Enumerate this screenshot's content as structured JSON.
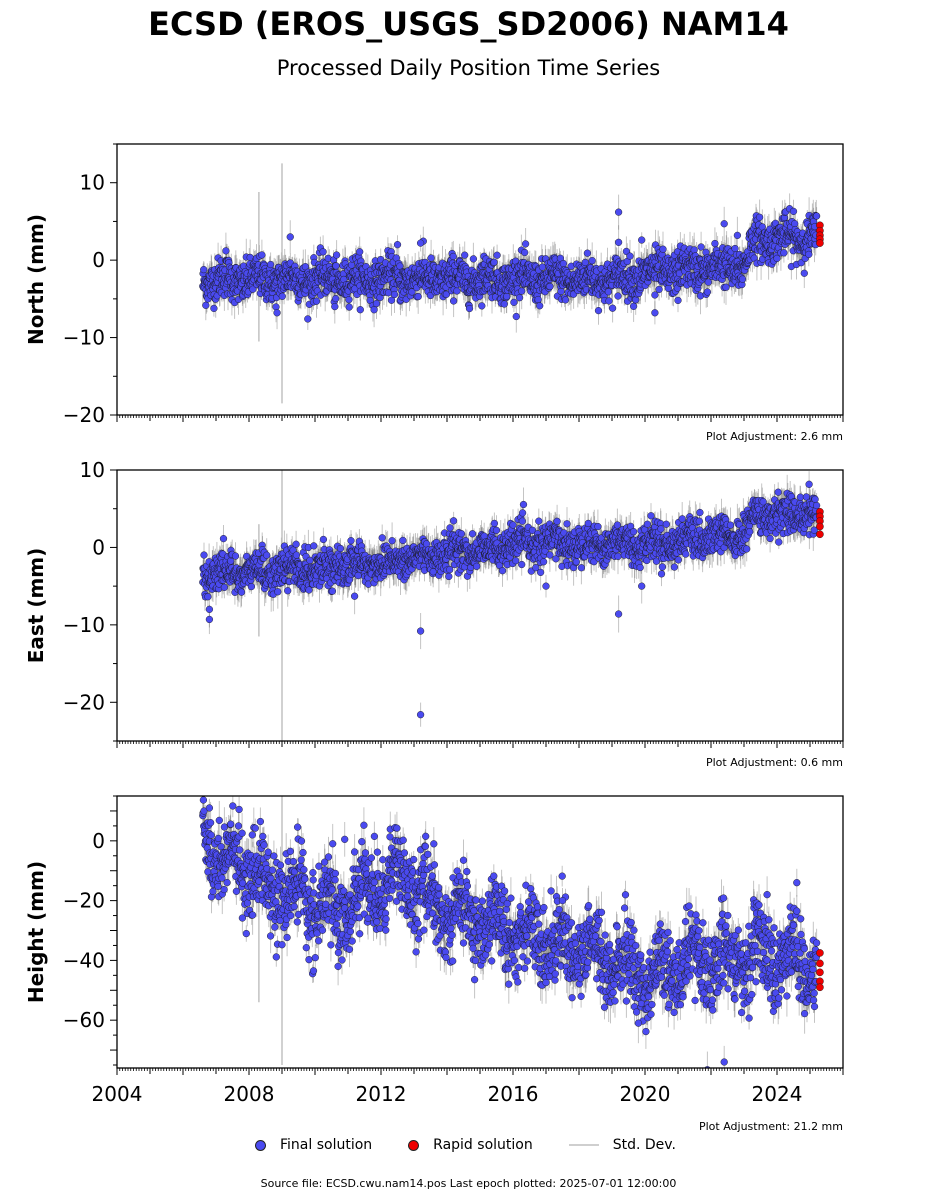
{
  "header": {
    "title": "ECSD (EROS_USGS_SD2006) NAM14",
    "subtitle": "Processed Daily Position Time Series"
  },
  "legend": {
    "final_label": "Final solution",
    "rapid_label": "Rapid solution",
    "std_label": "Std. Dev."
  },
  "footer": {
    "source": "Source file: ECSD.cwu.nam14.pos  Last epoch plotted: 2025-07-01 12:00:00"
  },
  "colors": {
    "final": "#4a4af0",
    "rapid": "#ee0000",
    "stddev": "#b8b8b8",
    "marker_edge": "#1a1a1a"
  },
  "chart_data": [
    {
      "type": "scatter",
      "ylabel": "North (mm)",
      "ylim": [
        -20,
        15
      ],
      "yticks": [
        10,
        0,
        -10,
        -20
      ],
      "xlim": [
        2004,
        2026
      ],
      "adjustment": "Plot Adjustment: 2.6 mm",
      "final_trend": [
        [
          2006.6,
          -2.6
        ],
        [
          2012.0,
          -2.4
        ],
        [
          2016.0,
          -2.4
        ],
        [
          2019.0,
          -2.5
        ],
        [
          2020.5,
          -1.5
        ],
        [
          2023.0,
          -0.8
        ],
        [
          2023.3,
          2.6
        ],
        [
          2025.2,
          3.0
        ]
      ],
      "scatter_sd": 1.3,
      "outliers": [
        [
          2007.3,
          1.2
        ],
        [
          2008.85,
          -6.8
        ],
        [
          2009.25,
          3.0
        ],
        [
          2010.6,
          -6.0
        ],
        [
          2012.5,
          2.0
        ],
        [
          2013.2,
          2.2
        ],
        [
          2019.2,
          6.2
        ],
        [
          2019.2,
          2.3
        ],
        [
          2020.3,
          -4.5
        ],
        [
          2020.3,
          -6.8
        ],
        [
          2019.9,
          2.6
        ],
        [
          2021.0,
          -5.2
        ],
        [
          2021.7,
          1.7
        ],
        [
          2022.4,
          4.7
        ],
        [
          2022.8,
          3.2
        ],
        [
          2024.5,
          6.3
        ]
      ],
      "rapid": [
        [
          2025.3,
          4.5
        ],
        [
          2025.3,
          3.8
        ],
        [
          2025.3,
          3.2
        ],
        [
          2025.3,
          2.7
        ],
        [
          2025.3,
          2.2
        ]
      ],
      "big_sd": [
        [
          2008.3,
          -10.5,
          8.8
        ],
        [
          2009.0,
          -18.5,
          12.5
        ]
      ]
    },
    {
      "type": "scatter",
      "ylabel": "East (mm)",
      "ylim": [
        -25,
        10
      ],
      "yticks": [
        10,
        0,
        -10,
        -20
      ],
      "xlim": [
        2004,
        2026
      ],
      "adjustment": "Plot Adjustment: 0.6 mm",
      "final_trend": [
        [
          2006.6,
          -3.3
        ],
        [
          2009.0,
          -3.0
        ],
        [
          2012.0,
          -2.0
        ],
        [
          2014.0,
          -0.8
        ],
        [
          2016.5,
          0.5
        ],
        [
          2020.0,
          0.5
        ],
        [
          2023.0,
          1.5
        ],
        [
          2023.3,
          4.0
        ],
        [
          2025.2,
          4.5
        ]
      ],
      "scatter_sd": 1.2,
      "outliers": [
        [
          2006.8,
          -8.0
        ],
        [
          2006.8,
          -9.3
        ],
        [
          2013.2,
          -10.8
        ],
        [
          2013.2,
          -21.6
        ],
        [
          2017.0,
          -5.0
        ],
        [
          2019.2,
          -8.6
        ],
        [
          2019.9,
          -5.0
        ],
        [
          2011.2,
          -6.3
        ],
        [
          2016.0,
          2.9
        ]
      ],
      "rapid": [
        [
          2025.3,
          4.6
        ],
        [
          2025.3,
          4.0
        ],
        [
          2025.3,
          3.4
        ],
        [
          2025.3,
          2.7
        ],
        [
          2025.3,
          1.7
        ]
      ],
      "big_sd": [
        [
          2008.3,
          -11.5,
          3.0
        ],
        [
          2009.0,
          -25.0,
          10.0
        ]
      ]
    },
    {
      "type": "scatter",
      "ylabel": "Height (mm)",
      "ylim": [
        -76,
        15
      ],
      "yticks": [
        0,
        -20,
        -40,
        -60
      ],
      "xlim": [
        2004,
        2026
      ],
      "xticks": [
        2004,
        2008,
        2012,
        2016,
        2020,
        2024
      ],
      "adjustment": "Plot Adjustment: 21.2 mm",
      "final_trend": [
        [
          2006.6,
          0.0
        ],
        [
          2007.5,
          -8.0
        ],
        [
          2009.0,
          -17.0
        ],
        [
          2010.5,
          -24.0
        ],
        [
          2012.5,
          -12.0
        ],
        [
          2014.0,
          -24.0
        ],
        [
          2016.0,
          -30.0
        ],
        [
          2018.0,
          -36.0
        ],
        [
          2020.0,
          -45.0
        ],
        [
          2022.0,
          -40.0
        ],
        [
          2024.0,
          -38.0
        ],
        [
          2025.2,
          -42.0
        ]
      ],
      "scatter_sd": 6.5,
      "outliers": [
        [
          2006.8,
          11.0
        ],
        [
          2007.7,
          10.5
        ],
        [
          2011.8,
          1.5
        ],
        [
          2010.9,
          0.5
        ],
        [
          2013.6,
          -1.0
        ],
        [
          2014.5,
          -6.5
        ],
        [
          2017.5,
          -20.0
        ],
        [
          2019.8,
          -61.0
        ],
        [
          2022.4,
          -74.0
        ],
        [
          2024.6,
          -14.0
        ],
        [
          2023.7,
          -18.0
        ],
        [
          2010.7,
          -42.0
        ]
      ],
      "rapid": [
        [
          2025.3,
          -37.5
        ],
        [
          2025.3,
          -41.0
        ],
        [
          2025.3,
          -44.0
        ],
        [
          2025.3,
          -47.0
        ],
        [
          2025.3,
          -49.0
        ]
      ],
      "big_sd": [
        [
          2008.3,
          -54.0,
          -10.0
        ],
        [
          2009.0,
          -75.0,
          15.0
        ]
      ]
    }
  ]
}
